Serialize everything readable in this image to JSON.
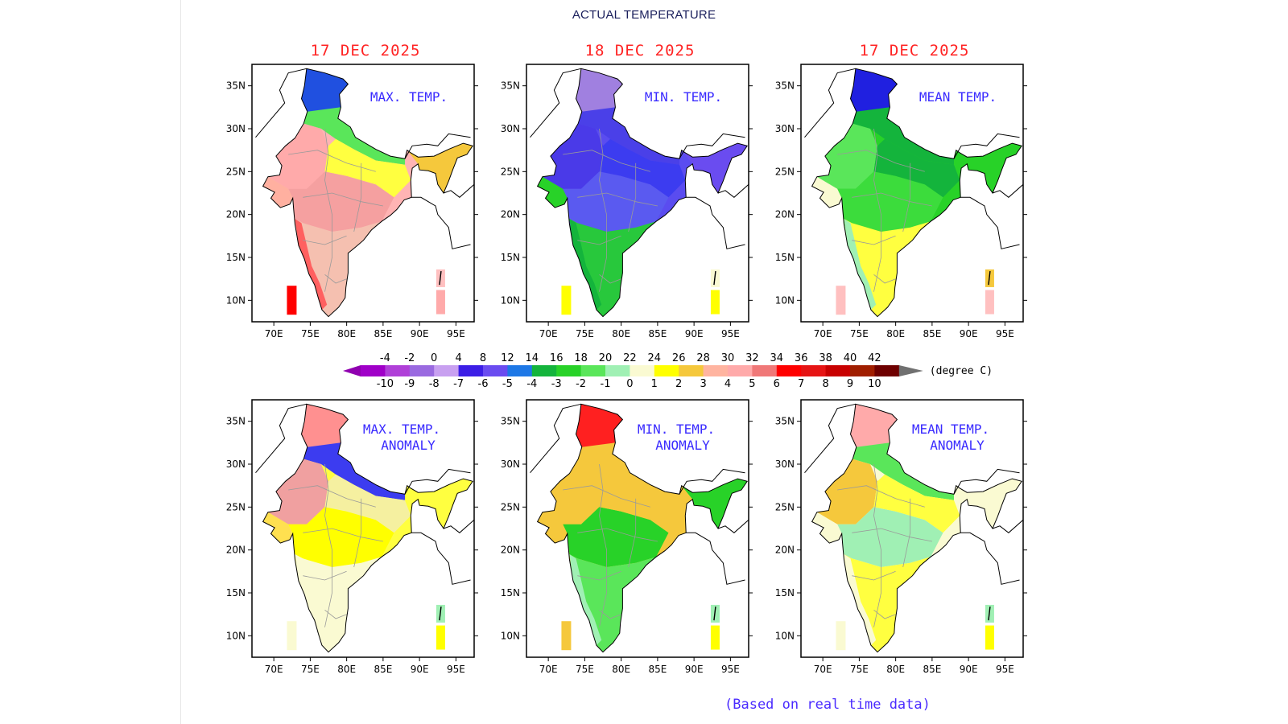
{
  "page": {
    "title": "ACTUAL TEMPERATURE",
    "footnote": "(Based on real time data)"
  },
  "axes": {
    "lat_labels": [
      "35N",
      "30N",
      "25N",
      "20N",
      "15N",
      "10N"
    ],
    "lon_labels": [
      "70E",
      "75E",
      "80E",
      "85E",
      "90E",
      "95E"
    ]
  },
  "panels": [
    {
      "date": "17 DEC 2025",
      "label_lines": [
        "MAX. TEMP."
      ],
      "scheme": "max"
    },
    {
      "date": "18 DEC 2025",
      "label_lines": [
        "MIN. TEMP."
      ],
      "scheme": "min"
    },
    {
      "date": "17 DEC 2025",
      "label_lines": [
        "MEAN TEMP."
      ],
      "scheme": "mean"
    },
    {
      "date": "",
      "label_lines": [
        "MAX. TEMP.",
        "ANOMALY"
      ],
      "scheme": "maxa"
    },
    {
      "date": "",
      "label_lines": [
        "MIN. TEMP.",
        "ANOMALY"
      ],
      "scheme": "mina"
    },
    {
      "date": "",
      "label_lines": [
        "MEAN TEMP.",
        "ANOMALY"
      ],
      "scheme": "meana"
    }
  ],
  "legend": {
    "unit": "(degree C)",
    "top_labels": [
      "-4",
      "-2",
      "0",
      "4",
      "8",
      "12",
      "14",
      "16",
      "18",
      "20",
      "22",
      "24",
      "26",
      "28",
      "30",
      "32",
      "34",
      "36",
      "38",
      "40",
      "42"
    ],
    "bottom_labels": [
      "-10",
      "-9",
      "-8",
      "-7",
      "-6",
      "-5",
      "-4",
      "-3",
      "-2",
      "-1",
      "0",
      "1",
      "2",
      "3",
      "4",
      "5",
      "6",
      "7",
      "8",
      "9",
      "10"
    ],
    "colors": [
      "#a000c8",
      "#b040d8",
      "#9a6ae0",
      "#c8a0f0",
      "#3c1ee6",
      "#6a4cf0",
      "#1e78e6",
      "#14b43c",
      "#28d228",
      "#5ae65a",
      "#a0f0b4",
      "#fafad2",
      "#ffff00",
      "#f5c83c",
      "#ffb4a0",
      "#ffaaaa",
      "#f07878",
      "#ff0000",
      "#e61414",
      "#c80000",
      "#a01e00",
      "#6e0000"
    ],
    "under_color": "#9000b0",
    "over_color": "#707070"
  }
}
